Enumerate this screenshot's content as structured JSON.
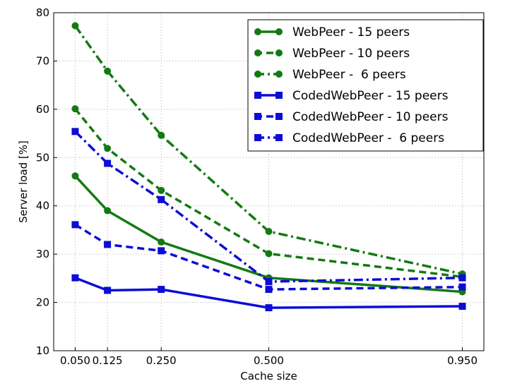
{
  "chart_data": {
    "type": "line",
    "xlabel": "Cache size",
    "ylabel": "Server load [%]",
    "x": [
      0.05,
      0.125,
      0.25,
      0.5,
      0.95
    ],
    "x_tick_labels": [
      "0.050",
      "0.125",
      "0.250",
      "0.500",
      "0.950"
    ],
    "xlim": [
      0,
      1.0
    ],
    "ylim": [
      10,
      80
    ],
    "y_ticks": [
      10,
      20,
      30,
      40,
      50,
      60,
      70,
      80
    ],
    "grid": true,
    "legend_position": "top-right",
    "series": [
      {
        "name": "WebPeer - 15 peers",
        "color": "#137a13",
        "dash": "solid",
        "marker": "circle",
        "values": [
          46.2,
          39.0,
          32.5,
          25.1,
          22.2
        ]
      },
      {
        "name": "WebPeer - 10 peers",
        "color": "#137a13",
        "dash": "dashed",
        "marker": "circle",
        "values": [
          60.1,
          51.9,
          43.2,
          30.1,
          25.3
        ]
      },
      {
        "name": "WebPeer -  6 peers",
        "color": "#137a13",
        "dash": "dashdot",
        "marker": "circle",
        "values": [
          77.3,
          67.9,
          54.6,
          34.7,
          25.9
        ]
      },
      {
        "name": "CodedWebPeer - 15 peers",
        "color": "#0d0dd6",
        "dash": "solid",
        "marker": "square",
        "values": [
          25.1,
          22.5,
          22.7,
          18.9,
          19.2
        ]
      },
      {
        "name": "CodedWebPeer - 10 peers",
        "color": "#0d0dd6",
        "dash": "dashed",
        "marker": "square",
        "values": [
          36.1,
          32.0,
          30.7,
          22.7,
          23.2
        ]
      },
      {
        "name": "CodedWebPeer -  6 peers",
        "color": "#0d0dd6",
        "dash": "dashdot",
        "marker": "square",
        "values": [
          55.4,
          48.8,
          41.3,
          24.3,
          25.1
        ]
      }
    ]
  }
}
